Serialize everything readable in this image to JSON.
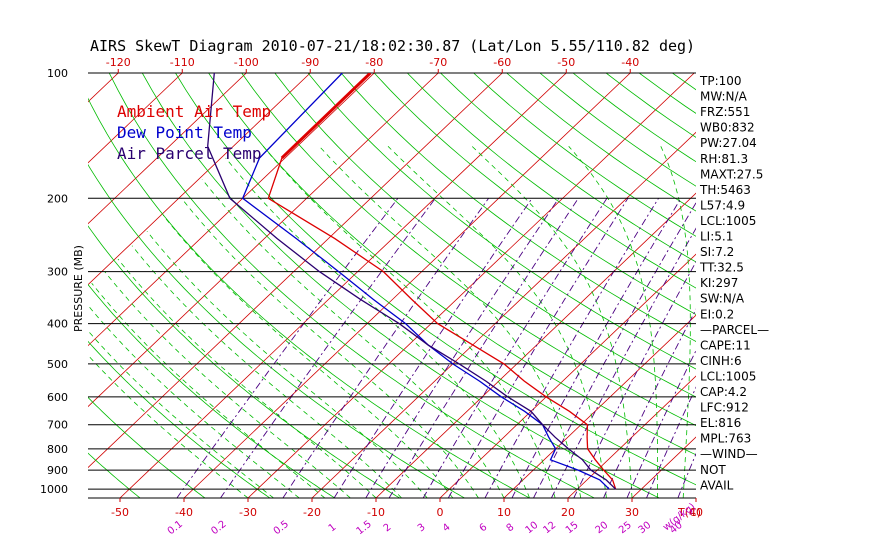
{
  "chart_data": {
    "type": "line",
    "title": "AIRS SkewT Diagram 2010-07-21/18:02:30.87 (Lat/Lon 5.55/110.82 deg)",
    "ylabel": "PRESSURE (MB)",
    "xlabel": "T(C)",
    "mixing_ratio_unit": "w(g/kg)",
    "pressure_ticks": [
      100,
      200,
      300,
      400,
      500,
      600,
      700,
      800,
      900,
      1000
    ],
    "pressure_range": [
      100,
      1050
    ],
    "temp_range_bottom": [
      -55,
      40
    ],
    "top_temp_ticks": [
      -120,
      -110,
      -100,
      -90,
      -80,
      -70,
      -60,
      -50,
      -40
    ],
    "bottom_temp_ticks": [
      -50,
      -40,
      -30,
      -20,
      -10,
      0,
      10,
      20,
      30,
      40
    ],
    "mixing_ratio_ticks": [
      "0.1",
      "0.2",
      "0.5",
      "1",
      "1.5",
      "2",
      "3",
      "4",
      "6",
      "8",
      "10",
      "12",
      "15",
      "20",
      "25",
      "30",
      "40"
    ],
    "legend": [
      {
        "label": "Ambient Air Temp",
        "color": "#dd0000"
      },
      {
        "label": "Dew Point Temp",
        "color": "#0000cc"
      },
      {
        "label": "Air Parcel Temp",
        "color": "#2a0070"
      }
    ],
    "series": [
      {
        "name": "Ambient Air Temp",
        "color": "#dd0000",
        "points": [
          [
            100,
            -80.6
          ],
          [
            160,
            -80.5
          ],
          [
            200,
            -76
          ],
          [
            250,
            -59
          ],
          [
            300,
            -46
          ],
          [
            350,
            -37
          ],
          [
            400,
            -29
          ],
          [
            450,
            -20
          ],
          [
            500,
            -12
          ],
          [
            550,
            -6
          ],
          [
            600,
            0
          ],
          [
            650,
            6
          ],
          [
            700,
            11
          ],
          [
            750,
            13
          ],
          [
            800,
            15
          ],
          [
            850,
            18
          ],
          [
            900,
            21
          ],
          [
            950,
            24
          ],
          [
            1000,
            26
          ]
        ]
      },
      {
        "name": "Dew Point Temp",
        "color": "#0000cc",
        "points": [
          [
            100,
            -85
          ],
          [
            160,
            -84
          ],
          [
            200,
            -80
          ],
          [
            250,
            -65
          ],
          [
            300,
            -53
          ],
          [
            350,
            -43
          ],
          [
            400,
            -34
          ],
          [
            450,
            -27
          ],
          [
            500,
            -20
          ],
          [
            550,
            -13
          ],
          [
            600,
            -7
          ],
          [
            650,
            -1
          ],
          [
            700,
            4
          ],
          [
            750,
            7
          ],
          [
            800,
            10
          ],
          [
            850,
            11
          ],
          [
            900,
            17
          ],
          [
            950,
            22
          ],
          [
            1000,
            25
          ]
        ]
      },
      {
        "name": "Air Parcel Temp",
        "color": "#2a0070",
        "points": [
          [
            100,
            -105
          ],
          [
            150,
            -94
          ],
          [
            200,
            -82
          ],
          [
            250,
            -68
          ],
          [
            300,
            -56
          ],
          [
            350,
            -45
          ],
          [
            400,
            -35
          ],
          [
            450,
            -27
          ],
          [
            500,
            -19
          ],
          [
            550,
            -12
          ],
          [
            600,
            -6
          ],
          [
            650,
            0
          ],
          [
            700,
            4
          ],
          [
            750,
            8
          ],
          [
            800,
            12
          ],
          [
            850,
            16
          ],
          [
            900,
            19
          ],
          [
            950,
            23
          ],
          [
            1000,
            26
          ]
        ]
      }
    ]
  },
  "stats": [
    "TP:100",
    "MW:N/A",
    "FRZ:551",
    "WB0:832",
    "PW:27.04",
    "RH:81.3",
    "MAXT:27.5",
    "TH:5463",
    "L57:4.9",
    "LCL:1005",
    "LI:5.1",
    "SI:7.2",
    "TT:32.5",
    "KI:297",
    "SW:N/A",
    "EI:0.2",
    "—PARCEL—",
    "CAPE:11",
    "CINH:6",
    "LCL:1005",
    "CAP:4.2",
    "LFC:912",
    "EL:816",
    "MPL:763",
    "—WIND—",
    "NOT",
    "AVAIL"
  ],
  "colors": {
    "grid": "#000000",
    "isotherm": "#d00000",
    "dry_adiabat": "#00bb00",
    "moist_adiabat": "#00bb00",
    "mixing_ratio": "#4b0082"
  }
}
